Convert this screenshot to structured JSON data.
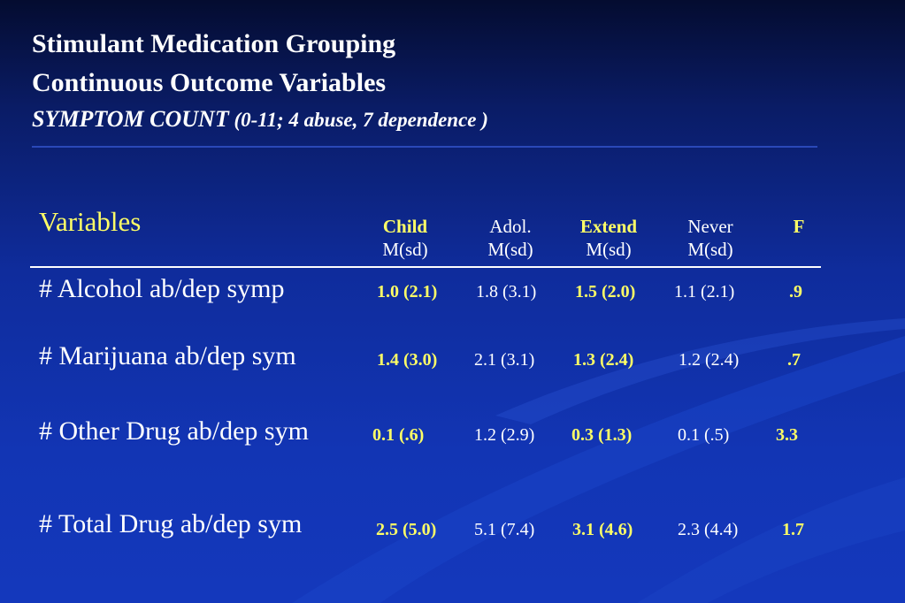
{
  "title": {
    "line1": "Stimulant Medication Grouping",
    "line2": "Continuous Outcome Variables",
    "line3_main": "SYMPTOM COUNT",
    "line3_rest": " (0-11; 4 abuse, 7 dependence )"
  },
  "table": {
    "variables_header": "Variables",
    "columns": [
      {
        "name": "Child",
        "sub": "M(sd)"
      },
      {
        "name": "Adol.",
        "sub": "M(sd)"
      },
      {
        "name": "Extend",
        "sub": "M(sd)"
      },
      {
        "name": "Never",
        "sub": "M(sd)"
      },
      {
        "name": "F",
        "sub": ""
      }
    ],
    "rows": [
      {
        "label": "# Alcohol ab/dep symp",
        "cells": [
          "1.0 (2.1)",
          "1.8 (3.1)",
          "1.5 (2.0)",
          "1.1 (2.1)",
          ".9"
        ]
      },
      {
        "label": "# Marijuana ab/dep sym",
        "cells": [
          "1.4 (3.0)",
          "2.1 (3.1)",
          "1.3 (2.4)",
          "1.2 (2.4)",
          ".7"
        ]
      },
      {
        "label": "# Other Drug ab/dep sym",
        "cells": [
          "0.1 (.6)",
          "1.2 (2.9)",
          "0.3 (1.3)",
          "0.1 (.5)",
          "3.3"
        ]
      },
      {
        "label": "#  Total Drug ab/dep sym",
        "cells": [
          "2.5 (5.0)",
          "5.1 (7.4)",
          "3.1 (4.6)",
          "2.3 (4.4)",
          "1.7"
        ]
      }
    ]
  }
}
